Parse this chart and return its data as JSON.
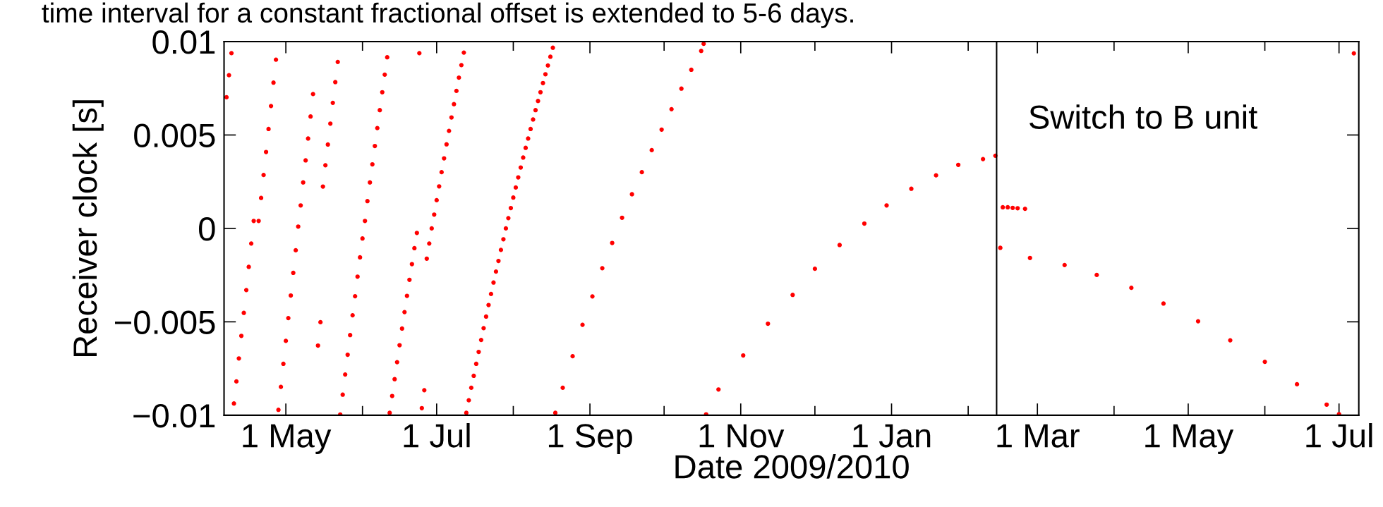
{
  "chart_data": {
    "type": "scatter",
    "annotations": [
      "time interval for a constant fractional offset is extended to 5-6 days."
    ],
    "xlabel": "Date 2009/2010",
    "ylabel": "Receiver clock [s]",
    "marker": "circle",
    "grid": false,
    "legend": false,
    "xlim": [
      "2009-04-06",
      "2010-07-09"
    ],
    "xticks": [
      {
        "value": "2009-05-01",
        "label": "1 May"
      },
      {
        "value": "2009-06-01",
        "label": null
      },
      {
        "value": "2009-07-01",
        "label": "1 Jul"
      },
      {
        "value": "2009-08-01",
        "label": null
      },
      {
        "value": "2009-09-01",
        "label": "1 Sep"
      },
      {
        "value": "2009-10-01",
        "label": null
      },
      {
        "value": "2009-11-01",
        "label": "1 Nov"
      },
      {
        "value": "2009-12-01",
        "label": null
      },
      {
        "value": "2010-01-01",
        "label": "1 Jan"
      },
      {
        "value": "2010-02-01",
        "label": null
      },
      {
        "value": "2010-03-01",
        "label": "1 Mar"
      },
      {
        "value": "2010-04-01",
        "label": null
      },
      {
        "value": "2010-05-01",
        "label": "1 May"
      },
      {
        "value": "2010-06-01",
        "label": null
      },
      {
        "value": "2010-07-01",
        "label": "1 Jul"
      }
    ],
    "ylim": [
      -0.01,
      0.01
    ],
    "yticks": [
      {
        "value": -0.01,
        "label": "−0.01"
      },
      {
        "value": -0.005,
        "label": "−0.005"
      },
      0,
      0.005,
      0.01
    ],
    "ref_lines": [
      {
        "axis": "x",
        "value": "2010-02-12T12:00",
        "label": "Switch to B unit",
        "color": "#000000",
        "line_style": "solid"
      }
    ],
    "series": [
      {
        "color": "#ff0000",
        "x": [
          "2009-04-07",
          "2009-04-08",
          "2009-04-09",
          "2009-04-10",
          "2009-04-11",
          "2009-04-12",
          "2009-04-13",
          "2009-04-14",
          "2009-04-15",
          "2009-04-16",
          "2009-04-17",
          "2009-04-18",
          "2009-04-20",
          "2009-04-21",
          "2009-04-22",
          "2009-04-23",
          "2009-04-24",
          "2009-04-25",
          "2009-04-26",
          "2009-04-27",
          "2009-04-28",
          "2009-04-29",
          "2009-04-30",
          "2009-05-01",
          "2009-05-02",
          "2009-05-03",
          "2009-05-04",
          "2009-05-05",
          "2009-05-06",
          "2009-05-07",
          "2009-05-08",
          "2009-05-09",
          "2009-05-10",
          "2009-05-11",
          "2009-05-12",
          "2009-05-14",
          "2009-05-15",
          "2009-05-16",
          "2009-05-17",
          "2009-05-18",
          "2009-05-19",
          "2009-05-20",
          "2009-05-21",
          "2009-05-22",
          "2009-05-23",
          "2009-05-24",
          "2009-05-25",
          "2009-05-26",
          "2009-05-27",
          "2009-05-28",
          "2009-05-29",
          "2009-05-30",
          "2009-05-31",
          "2009-06-01",
          "2009-06-02",
          "2009-06-03",
          "2009-06-04",
          "2009-06-05",
          "2009-06-06",
          "2009-06-07",
          "2009-06-08",
          "2009-06-09",
          "2009-06-10",
          "2009-06-11",
          "2009-06-12",
          "2009-06-13",
          "2009-06-14",
          "2009-06-15",
          "2009-06-16",
          "2009-06-17",
          "2009-06-18",
          "2009-06-19",
          "2009-06-20",
          "2009-06-21",
          "2009-06-22",
          "2009-06-23",
          "2009-06-24",
          "2009-06-25",
          "2009-06-26",
          "2009-06-27",
          "2009-06-28",
          "2009-06-29",
          "2009-06-30",
          "2009-07-01",
          "2009-07-02",
          "2009-07-03",
          "2009-07-04",
          "2009-07-05",
          "2009-07-06",
          "2009-07-07",
          "2009-07-08",
          "2009-07-09",
          "2009-07-10",
          "2009-07-11",
          "2009-07-12",
          "2009-07-13",
          "2009-07-14",
          "2009-07-15",
          "2009-07-16",
          "2009-07-17",
          "2009-07-18",
          "2009-07-19",
          "2009-07-20",
          "2009-07-21",
          "2009-07-22",
          "2009-07-23",
          "2009-07-24",
          "2009-07-25",
          "2009-07-26",
          "2009-07-27",
          "2009-07-28",
          "2009-07-29",
          "2009-07-30",
          "2009-07-31",
          "2009-08-01",
          "2009-08-02",
          "2009-08-03",
          "2009-08-04",
          "2009-08-05",
          "2009-08-06",
          "2009-08-07",
          "2009-08-08",
          "2009-08-09",
          "2009-08-10",
          "2009-08-11",
          "2009-08-12",
          "2009-08-13",
          "2009-08-14",
          "2009-08-15",
          "2009-08-16",
          "2009-08-17",
          "2009-08-18",
          "2009-08-21",
          "2009-08-25",
          "2009-08-29",
          "2009-09-02",
          "2009-09-06",
          "2009-09-10",
          "2009-09-14",
          "2009-09-18",
          "2009-09-22",
          "2009-09-26",
          "2009-09-30",
          "2009-10-04",
          "2009-10-08",
          "2009-10-12",
          "2009-10-16",
          "2009-10-17",
          "2009-10-18",
          "2009-10-23",
          "2009-11-02",
          "2009-11-12",
          "2009-11-22",
          "2009-12-01",
          "2009-12-11",
          "2009-12-21",
          "2009-12-30",
          "2010-01-09",
          "2010-01-19",
          "2010-01-28",
          "2010-02-07",
          "2010-02-12",
          "2010-02-14",
          "2010-02-15",
          "2010-02-17",
          "2010-02-19",
          "2010-02-21",
          "2010-02-24",
          "2010-02-26",
          "2010-03-12",
          "2010-03-25",
          "2010-04-08",
          "2010-04-21",
          "2010-05-05",
          "2010-05-18",
          "2010-06-01",
          "2010-06-14",
          "2010-06-26",
          "2010-07-01",
          "2010-07-07"
        ],
        "values": [
          0.00702,
          0.0082,
          0.00938,
          -0.00937,
          -0.00819,
          -0.00696,
          -0.00575,
          -0.00452,
          -0.0033,
          -0.00206,
          -0.00081,
          0.0004,
          0.0004,
          0.00163,
          0.00286,
          0.00409,
          0.00532,
          0.00655,
          0.0078,
          0.00903,
          -0.00971,
          -0.00848,
          -0.00725,
          -0.00602,
          -0.0048,
          -0.00359,
          -0.00238,
          -0.00117,
          0.0001,
          0.00123,
          0.00246,
          0.00364,
          0.00481,
          0.00599,
          0.00719,
          -0.00627,
          -0.00502,
          0.00224,
          0.00338,
          0.00449,
          0.00561,
          0.00672,
          0.00783,
          0.00891,
          -0.00996,
          -0.0089,
          -0.00782,
          -0.00676,
          -0.00571,
          -0.00465,
          -0.00363,
          -0.00258,
          -0.00155,
          -0.00054,
          0.0004,
          0.00146,
          0.00246,
          0.00343,
          0.00441,
          0.00537,
          0.00633,
          0.00729,
          0.00823,
          0.00916,
          -0.00987,
          -0.00897,
          -0.00807,
          -0.00716,
          -0.00625,
          -0.00536,
          -0.00448,
          -0.00361,
          -0.00275,
          -0.00191,
          -0.00106,
          -0.00024,
          0.00938,
          -0.00962,
          -0.00866,
          -0.00162,
          -0.00081,
          0,
          0.00074,
          0.00151,
          0.00225,
          0.00301,
          0.00375,
          0.0045,
          0.00522,
          0.00594,
          0.00665,
          0.00736,
          0.00807,
          0.00874,
          0.00941,
          -0.00987,
          -0.0092,
          -0.00853,
          -0.00789,
          -0.00725,
          -0.00661,
          -0.00597,
          -0.00534,
          -0.00472,
          -0.0041,
          -0.00351,
          -0.0029,
          -0.00231,
          -0.00174,
          -0.00115,
          -0.00058,
          0,
          0.00055,
          0.00109,
          0.00165,
          0.00219,
          0.00273,
          0.00326,
          0.00379,
          0.00431,
          0.00481,
          0.00532,
          0.00583,
          0.00633,
          0.00682,
          0.00729,
          0.00778,
          0.00825,
          0.00872,
          0.00919,
          0.00967,
          -0.00987,
          -0.00853,
          -0.00684,
          -0.00516,
          -0.00364,
          -0.00213,
          -0.00078,
          0.00057,
          0.00183,
          0.00301,
          0.00419,
          0.00529,
          0.00638,
          0.00748,
          0.00849,
          0.0095,
          0.00988,
          -0.00995,
          -0.00862,
          -0.0068,
          -0.0051,
          -0.00356,
          -0.00216,
          -0.00089,
          0.00026,
          0.00123,
          0.00212,
          0.00284,
          0.0034,
          0.00371,
          0.00389,
          -0.00104,
          0.00113,
          0.00113,
          0.0011,
          0.00108,
          0.00105,
          -0.00158,
          -0.00196,
          -0.00249,
          -0.00318,
          -0.00402,
          -0.00497,
          -0.00599,
          -0.00714,
          -0.00834,
          -0.00943,
          -0.00994,
          0.00937
        ]
      }
    ]
  }
}
